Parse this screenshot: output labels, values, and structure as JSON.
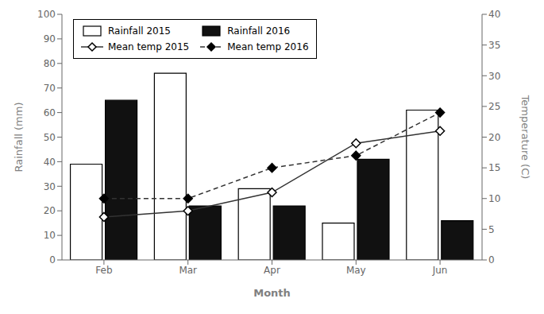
{
  "chart_data": {
    "type": "bar",
    "xlabel": "Month",
    "ylabel": "Rainfall (mm)",
    "y2label": "Temperature (C)",
    "categories": [
      "Feb",
      "Mar",
      "Apr",
      "May",
      "Jun"
    ],
    "series": [
      {
        "name": "Rainfall 2015",
        "type": "bar",
        "color": "#ffffff",
        "values": [
          39,
          76,
          29,
          15,
          61
        ]
      },
      {
        "name": "Rainfall 2016",
        "type": "bar",
        "color": "#111111",
        "values": [
          65,
          22,
          22,
          41,
          16
        ]
      },
      {
        "name": "Mean temp 2015",
        "type": "line",
        "axis": "y2",
        "color": "#333333",
        "marker": "diamond",
        "line_style": "solid",
        "values": [
          7,
          8,
          11,
          19,
          21
        ]
      },
      {
        "name": "Mean temp 2016",
        "type": "line",
        "axis": "y2",
        "color": "#333333",
        "marker": "diamond",
        "line_style": "dashed",
        "values": [
          10,
          10,
          15,
          17,
          24
        ]
      }
    ],
    "ylim": [
      0,
      100
    ],
    "yticks": [
      0,
      10,
      20,
      30,
      40,
      50,
      60,
      70,
      80,
      90,
      100
    ],
    "y2lim": [
      0,
      40
    ],
    "y2ticks": [
      0,
      5,
      10,
      15,
      20,
      25,
      30,
      35,
      40
    ],
    "grid": false,
    "legend": "upper left"
  }
}
